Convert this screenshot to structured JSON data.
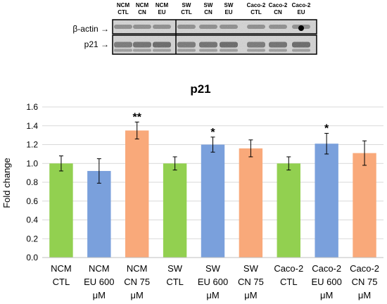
{
  "blot": {
    "lane_labels": [
      [
        "NCM",
        "CTL"
      ],
      [
        "NCM",
        "CN"
      ],
      [
        "NCM",
        "EU"
      ],
      [
        "SW",
        "CTL"
      ],
      [
        "SW",
        "CN"
      ],
      [
        "SW",
        "EU"
      ],
      [
        "Caco-2",
        "CTL"
      ],
      [
        "Caco-2",
        "CN"
      ],
      [
        "Caco-2",
        "EU"
      ]
    ],
    "row_labels": [
      "β-actin →",
      "p21 →"
    ]
  },
  "chart_data": {
    "type": "bar",
    "title": "p21",
    "xlabel": "",
    "ylabel": "Fold change",
    "ylim": [
      0,
      1.6
    ],
    "yticks": [
      "0.0",
      "0.2",
      "0.4",
      "0.6",
      "0.8",
      "1.0",
      "1.2",
      "1.4",
      "1.6"
    ],
    "grid": true,
    "categories": [
      [
        "NCM",
        "CTL"
      ],
      [
        "NCM",
        "EU 600",
        "μM"
      ],
      [
        "NCM",
        "CN 75",
        "μM"
      ],
      [
        "SW",
        "CTL"
      ],
      [
        "SW",
        "EU 600",
        "μM"
      ],
      [
        "SW",
        "CN 75",
        "μM"
      ],
      [
        "Caco-2",
        "CTL"
      ],
      [
        "Caco-2",
        "EU 600",
        "μM"
      ],
      [
        "Caco-2",
        "CN 75",
        "μM"
      ]
    ],
    "values": [
      1.0,
      0.92,
      1.35,
      1.0,
      1.2,
      1.16,
      1.0,
      1.21,
      1.11
    ],
    "errors": [
      0.08,
      0.13,
      0.09,
      0.07,
      0.08,
      0.09,
      0.07,
      0.11,
      0.13
    ],
    "annotations": [
      "",
      "",
      "**",
      "",
      "*",
      "",
      "",
      "*",
      ""
    ],
    "colors": [
      "#92d050",
      "#7aa0dc",
      "#f9a97a",
      "#92d050",
      "#7aa0dc",
      "#f9a97a",
      "#92d050",
      "#7aa0dc",
      "#f9a97a"
    ]
  }
}
